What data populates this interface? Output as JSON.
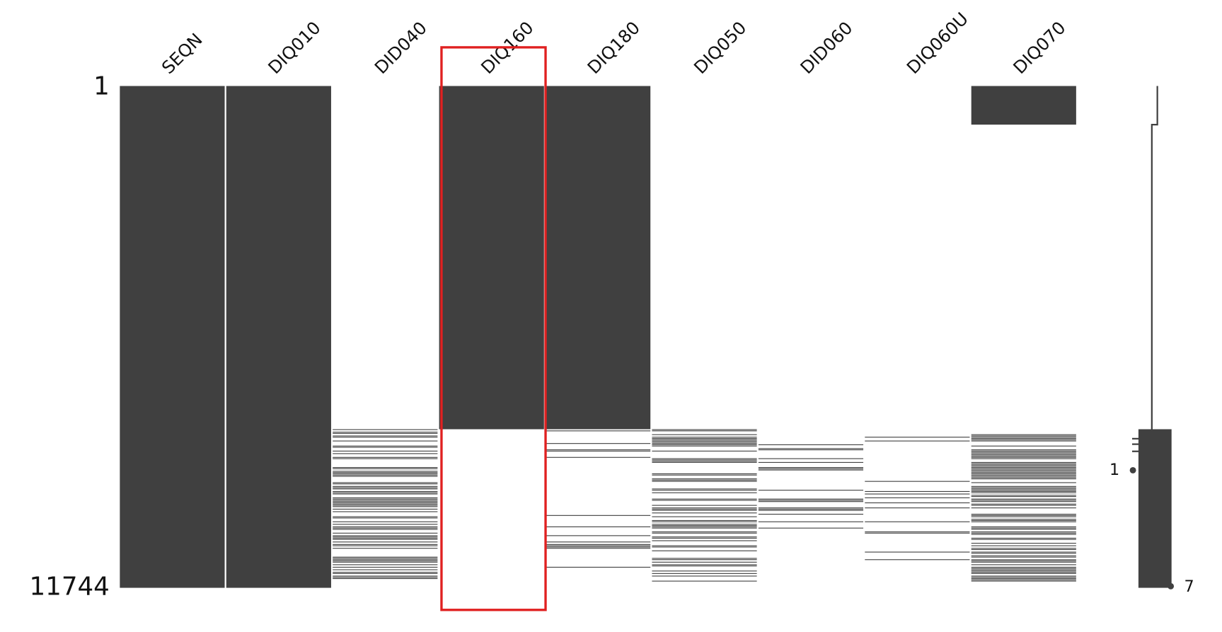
{
  "chart_data": {
    "type": "matrix",
    "columns": [
      "SEQN",
      "DIQ010",
      "DID040",
      "DIQ160",
      "DIQ180",
      "DIQ050",
      "DID060",
      "DIQ060U",
      "DIQ070"
    ],
    "dense_rows_end": [
      11744,
      11744,
      null,
      8033,
      8033,
      null,
      null,
      null,
      905
    ],
    "ylim": [
      1,
      11744
    ],
    "yticks": [
      1,
      11744
    ],
    "sparkline_labels": [
      1,
      7
    ],
    "color": "#404040",
    "highlight_color": "#e02020"
  }
}
